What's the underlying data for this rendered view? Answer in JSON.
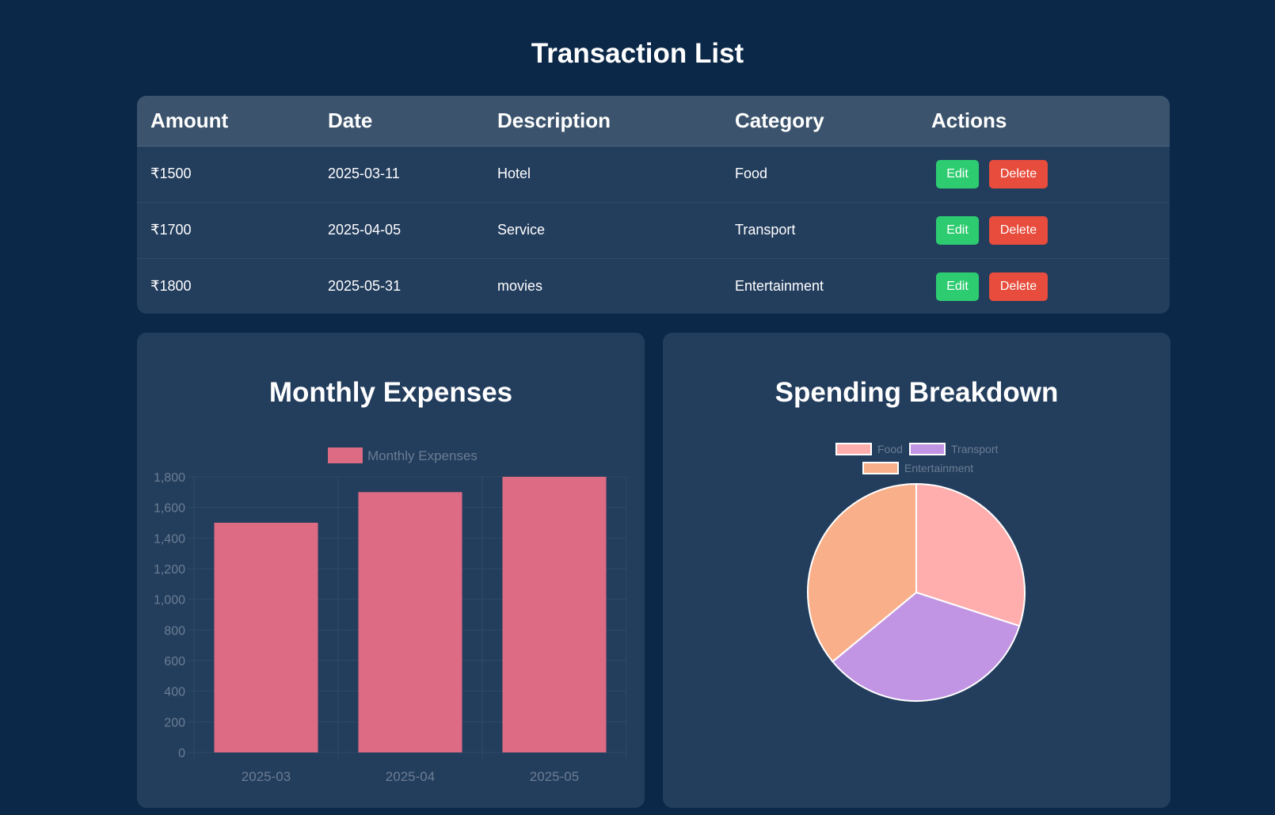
{
  "page": {
    "title": "Transaction List"
  },
  "table": {
    "headers": [
      "Amount",
      "Date",
      "Description",
      "Category",
      "Actions"
    ],
    "rows": [
      {
        "amount": "₹1500",
        "date": "2025-03-11",
        "description": "Hotel",
        "category": "Food",
        "edit_label": "Edit",
        "delete_label": "Delete"
      },
      {
        "amount": "₹1700",
        "date": "2025-04-05",
        "description": "Service",
        "category": "Transport",
        "edit_label": "Edit",
        "delete_label": "Delete"
      },
      {
        "amount": "₹1800",
        "date": "2025-05-31",
        "description": "movies",
        "category": "Entertainment",
        "edit_label": "Edit",
        "delete_label": "Delete"
      }
    ]
  },
  "monthly_card": {
    "title": "Monthly Expenses"
  },
  "spending_card": {
    "title": "Spending Breakdown"
  },
  "colors": {
    "bar": "#de6b84",
    "food": "#ffadad",
    "transport": "#c195e3",
    "entertainment": "#f9b08a",
    "edit": "#2ecc71",
    "delete": "#e74c3c"
  },
  "chart_data": [
    {
      "type": "bar",
      "categories": [
        "2025-03",
        "2025-04",
        "2025-05"
      ],
      "series": [
        {
          "name": "Monthly Expenses",
          "values": [
            1500,
            1700,
            1800
          ]
        }
      ],
      "yticks": [
        0,
        200,
        400,
        600,
        800,
        1000,
        1200,
        1400,
        1600,
        1800
      ],
      "ytick_labels": [
        "0",
        "200",
        "400",
        "600",
        "800",
        "1,000",
        "1,200",
        "1,400",
        "1,600",
        "1,800"
      ],
      "ylim": [
        0,
        1800
      ],
      "grid": true,
      "legend": "top"
    },
    {
      "type": "pie",
      "labels": [
        "Food",
        "Transport",
        "Entertainment"
      ],
      "values": [
        1500,
        1700,
        1800
      ],
      "legend": "top"
    }
  ]
}
